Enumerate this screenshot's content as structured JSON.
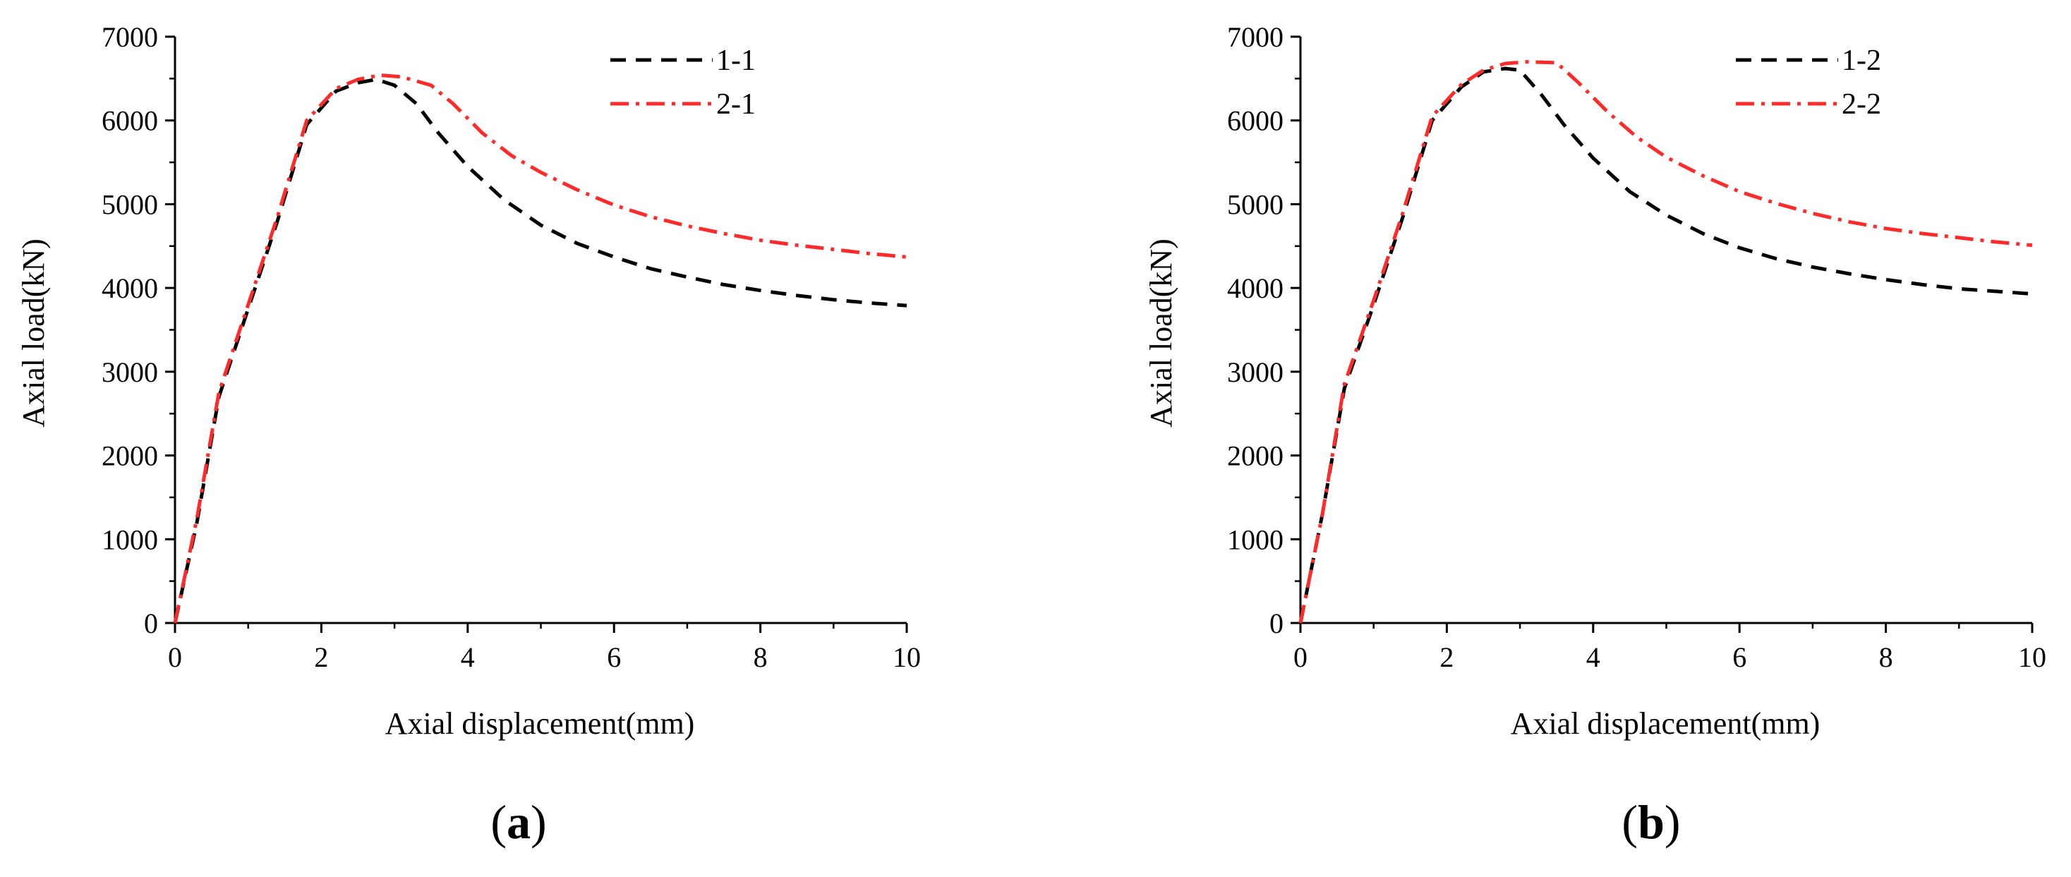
{
  "chart_data": [
    {
      "type": "line",
      "panel_label": "(a)",
      "panel_letter": "a",
      "xlabel": "Axial displacement(mm)",
      "ylabel": "Axial load(kN)",
      "xlim": [
        0,
        10
      ],
      "ylim": [
        0,
        7000
      ],
      "x_ticks": [
        "0",
        "2",
        "4",
        "6",
        "8",
        "10"
      ],
      "y_ticks": [
        "0",
        "1000",
        "2000",
        "3000",
        "4000",
        "5000",
        "6000",
        "7000"
      ],
      "legend_position": "top-right",
      "series": [
        {
          "name": "1-1",
          "color": "#000000",
          "style": "dashed",
          "points": [
            [
              0,
              0
            ],
            [
              0.3,
              1200
            ],
            [
              0.6,
              2700
            ],
            [
              1.0,
              3750
            ],
            [
              1.4,
              4800
            ],
            [
              1.8,
              5950
            ],
            [
              2.2,
              6350
            ],
            [
              2.5,
              6450
            ],
            [
              2.75,
              6490
            ],
            [
              3.0,
              6420
            ],
            [
              3.3,
              6200
            ],
            [
              3.6,
              5850
            ],
            [
              4.0,
              5450
            ],
            [
              4.5,
              5050
            ],
            [
              5.0,
              4750
            ],
            [
              5.5,
              4530
            ],
            [
              6.0,
              4370
            ],
            [
              6.5,
              4230
            ],
            [
              7.0,
              4130
            ],
            [
              7.5,
              4040
            ],
            [
              8.0,
              3970
            ],
            [
              8.5,
              3910
            ],
            [
              9.0,
              3860
            ],
            [
              9.5,
              3820
            ],
            [
              10.0,
              3790
            ]
          ]
        },
        {
          "name": "2-1",
          "color": "#ff2a2a",
          "style": "dash-dot",
          "points": [
            [
              0,
              0
            ],
            [
              0.3,
              1250
            ],
            [
              0.6,
              2750
            ],
            [
              1.0,
              3800
            ],
            [
              1.4,
              4850
            ],
            [
              1.8,
              6000
            ],
            [
              2.2,
              6380
            ],
            [
              2.5,
              6490
            ],
            [
              2.8,
              6540
            ],
            [
              3.1,
              6520
            ],
            [
              3.5,
              6420
            ],
            [
              3.8,
              6200
            ],
            [
              4.2,
              5850
            ],
            [
              4.6,
              5580
            ],
            [
              5.0,
              5380
            ],
            [
              5.5,
              5170
            ],
            [
              6.0,
              4990
            ],
            [
              6.5,
              4850
            ],
            [
              7.0,
              4740
            ],
            [
              7.5,
              4650
            ],
            [
              8.0,
              4570
            ],
            [
              8.5,
              4510
            ],
            [
              9.0,
              4460
            ],
            [
              9.5,
              4410
            ],
            [
              10.0,
              4370
            ]
          ]
        }
      ]
    },
    {
      "type": "line",
      "panel_label": "(b)",
      "panel_letter": "b",
      "xlabel": "Axial displacement(mm)",
      "ylabel": "Axial load(kN)",
      "xlim": [
        0,
        10
      ],
      "ylim": [
        0,
        7000
      ],
      "x_ticks": [
        "0",
        "2",
        "4",
        "6",
        "8",
        "10"
      ],
      "y_ticks": [
        "0",
        "1000",
        "2000",
        "3000",
        "4000",
        "5000",
        "6000",
        "7000"
      ],
      "legend_position": "top-right",
      "series": [
        {
          "name": "1-2",
          "color": "#000000",
          "style": "dashed",
          "points": [
            [
              0,
              0
            ],
            [
              0.3,
              1300
            ],
            [
              0.6,
              2800
            ],
            [
              1.0,
              3800
            ],
            [
              1.4,
              4850
            ],
            [
              1.8,
              6000
            ],
            [
              2.2,
              6400
            ],
            [
              2.5,
              6580
            ],
            [
              2.8,
              6620
            ],
            [
              3.0,
              6600
            ],
            [
              3.3,
              6300
            ],
            [
              3.6,
              5950
            ],
            [
              4.0,
              5550
            ],
            [
              4.5,
              5150
            ],
            [
              5.0,
              4870
            ],
            [
              5.5,
              4650
            ],
            [
              6.0,
              4480
            ],
            [
              6.5,
              4350
            ],
            [
              7.0,
              4250
            ],
            [
              7.5,
              4170
            ],
            [
              8.0,
              4100
            ],
            [
              8.5,
              4040
            ],
            [
              9.0,
              3990
            ],
            [
              9.5,
              3960
            ],
            [
              10.0,
              3930
            ]
          ]
        },
        {
          "name": "2-2",
          "color": "#ff2a2a",
          "style": "dash-dot",
          "points": [
            [
              0,
              0
            ],
            [
              0.3,
              1300
            ],
            [
              0.6,
              2850
            ],
            [
              1.0,
              3850
            ],
            [
              1.4,
              4900
            ],
            [
              1.8,
              6050
            ],
            [
              2.2,
              6430
            ],
            [
              2.5,
              6600
            ],
            [
              2.8,
              6680
            ],
            [
              3.1,
              6700
            ],
            [
              3.5,
              6690
            ],
            [
              3.8,
              6450
            ],
            [
              4.2,
              6100
            ],
            [
              4.6,
              5800
            ],
            [
              5.0,
              5560
            ],
            [
              5.5,
              5340
            ],
            [
              6.0,
              5150
            ],
            [
              6.5,
              5010
            ],
            [
              7.0,
              4890
            ],
            [
              7.5,
              4790
            ],
            [
              8.0,
              4710
            ],
            [
              8.5,
              4650
            ],
            [
              9.0,
              4600
            ],
            [
              9.5,
              4550
            ],
            [
              10.0,
              4510
            ]
          ]
        }
      ]
    }
  ]
}
